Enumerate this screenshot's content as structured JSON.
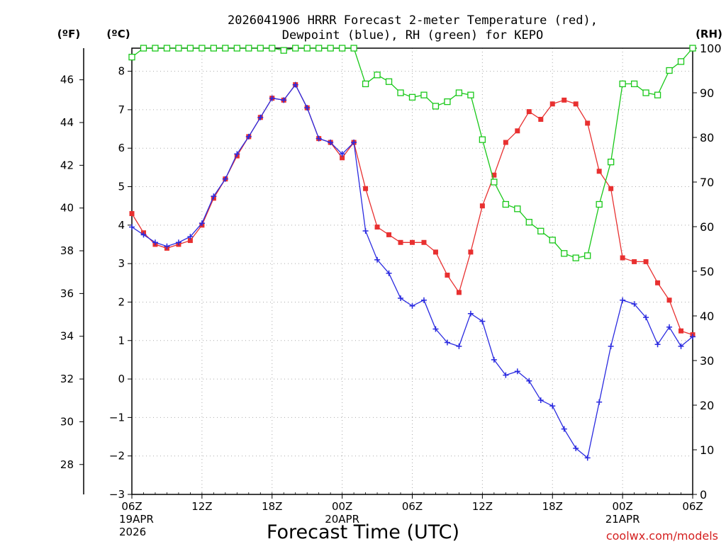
{
  "chart_data": {
    "type": "line",
    "title_line1": "2026041906 HRRR Forecast 2-meter Temperature (red),",
    "title_line2": "Dewpoint (blue), RH (green) for KEPO",
    "xlabel": "Forecast Time (UTC)",
    "unit_f": "(ºF)",
    "unit_c": "(ºC)",
    "unit_rh": "(RH)",
    "credit": "coolwx.com/models",
    "x_ticks": [
      {
        "hour": 0,
        "label": "06Z",
        "date": "19APR",
        "year": "2026"
      },
      {
        "hour": 6,
        "label": "12Z"
      },
      {
        "hour": 12,
        "label": "18Z"
      },
      {
        "hour": 18,
        "label": "00Z",
        "date": "20APR"
      },
      {
        "hour": 24,
        "label": "06Z"
      },
      {
        "hour": 30,
        "label": "12Z"
      },
      {
        "hour": 36,
        "label": "18Z"
      },
      {
        "hour": 42,
        "label": "00Z",
        "date": "21APR"
      },
      {
        "hour": 48,
        "label": "06Z"
      }
    ],
    "c_ticks": [
      "8",
      "7",
      "6",
      "5",
      "4",
      "3",
      "2",
      "1",
      "0",
      "−1",
      "−2",
      "−3"
    ],
    "f_ticks": [
      "46",
      "44",
      "42",
      "40",
      "38",
      "36",
      "34",
      "32",
      "30",
      "28"
    ],
    "rh_ticks": [
      "100",
      "90",
      "80",
      "70",
      "60",
      "50",
      "40",
      "30",
      "20",
      "10",
      "0"
    ],
    "ylim_c": [
      -3,
      8.6
    ],
    "ylim_rh": [
      0,
      100
    ],
    "series": [
      {
        "color": "#e83030",
        "values": [
          4.3,
          3.8,
          3.5,
          3.4,
          3.5,
          3.6,
          4.0,
          4.7,
          5.2,
          5.8,
          6.3,
          6.8,
          7.3,
          7.25,
          7.65,
          7.05,
          6.25,
          6.15,
          5.75,
          6.15,
          4.95,
          3.95,
          3.75,
          3.55,
          3.55,
          3.55,
          3.3,
          2.7,
          2.25,
          3.3,
          4.5,
          5.3,
          6.15,
          6.45,
          6.95,
          6.75,
          7.15,
          7.25,
          7.15,
          6.65,
          5.4,
          4.95,
          3.15,
          3.05,
          3.05,
          2.5,
          2.05,
          1.25,
          1.15
        ]
      },
      {
        "color": "#2a2ae0",
        "values": [
          3.95,
          3.75,
          3.55,
          3.45,
          3.55,
          3.7,
          4.05,
          4.75,
          5.2,
          5.85,
          6.3,
          6.8,
          7.3,
          7.25,
          7.65,
          7.05,
          6.25,
          6.15,
          5.85,
          6.15,
          3.85,
          3.1,
          2.75,
          2.1,
          1.9,
          2.05,
          1.3,
          0.95,
          0.85,
          1.7,
          1.5,
          0.5,
          0.1,
          0.2,
          -0.05,
          -0.55,
          -0.7,
          -1.3,
          -1.8,
          -2.05,
          -0.6,
          0.85,
          2.05,
          1.95,
          1.6,
          0.9,
          1.35,
          0.85,
          1.1
        ]
      },
      {
        "color": "#19c819",
        "axis": "rh",
        "values": [
          98,
          100,
          100,
          100,
          100,
          100,
          100,
          100,
          100,
          100,
          100,
          100,
          100,
          99.5,
          100,
          100,
          100,
          100,
          100,
          100,
          92,
          94,
          92.5,
          90,
          89,
          89.5,
          87,
          88,
          90,
          89.5,
          79.5,
          70,
          65,
          64,
          61,
          59,
          57,
          54,
          53,
          53.5,
          65,
          74.5,
          92,
          92,
          90,
          89.5,
          95,
          97,
          100
        ]
      }
    ]
  }
}
